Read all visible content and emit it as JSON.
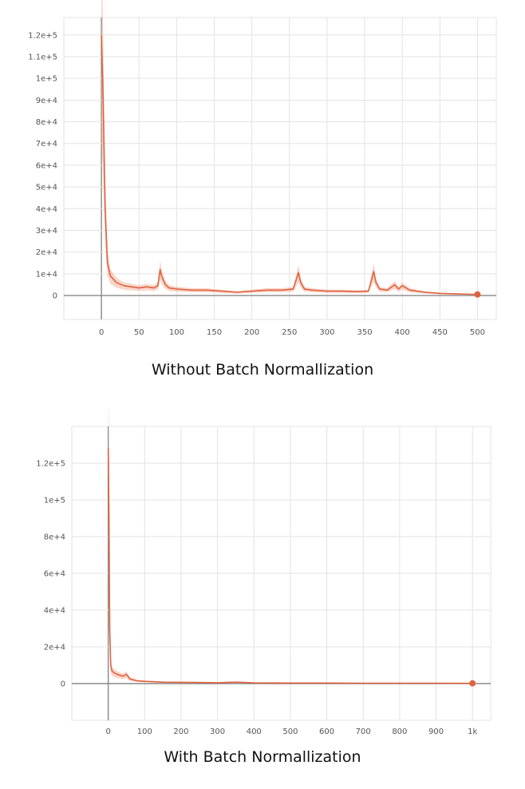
{
  "captions": {
    "top": "Without Batch Normallization",
    "bottom": "With Batch Normallization"
  },
  "colors": {
    "line": "#e0633f",
    "band": "#f2a189",
    "grid": "#e3e3e3",
    "axis": "#888888"
  },
  "chart_data": [
    {
      "type": "line",
      "title": "",
      "xlabel": "",
      "ylabel": "",
      "grid": true,
      "xlim": [
        -50,
        525
      ],
      "ylim": [
        -11000,
        128000
      ],
      "x_ticks": [
        0,
        50,
        100,
        150,
        200,
        250,
        300,
        350,
        400,
        450,
        500
      ],
      "x_tick_labels": [
        "0",
        "50",
        "100",
        "150",
        "200",
        "250",
        "300",
        "350",
        "400",
        "450",
        "500"
      ],
      "y_ticks": [
        0,
        10000,
        20000,
        30000,
        40000,
        50000,
        60000,
        70000,
        80000,
        90000,
        100000,
        110000,
        120000
      ],
      "y_tick_labels": [
        "0",
        "1e+4",
        "2e+4",
        "3e+4",
        "4e+4",
        "5e+4",
        "6e+4",
        "7e+4",
        "8e+4",
        "9e+4",
        "1e+5",
        "1.1e+5",
        "1.2e+5"
      ],
      "series": [
        {
          "x": [
            0,
            2,
            5,
            8,
            12,
            20,
            30,
            40,
            50,
            60,
            70,
            75,
            78,
            80,
            85,
            90,
            100,
            120,
            140,
            160,
            180,
            200,
            220,
            240,
            255,
            262,
            265,
            270,
            280,
            300,
            320,
            340,
            355,
            362,
            365,
            370,
            380,
            390,
            395,
            400,
            410,
            430,
            450,
            470,
            490,
            500
          ],
          "y": [
            120000,
            95000,
            40000,
            15000,
            9000,
            6000,
            4500,
            4000,
            3500,
            4000,
            3500,
            4500,
            12000,
            9000,
            5000,
            3500,
            3000,
            2500,
            2500,
            2000,
            1500,
            2000,
            2500,
            2500,
            3000,
            10500,
            6000,
            3000,
            2500,
            2000,
            2000,
            1800,
            2000,
            11000,
            6000,
            3000,
            2500,
            5000,
            3000,
            4500,
            2500,
            1500,
            1000,
            800,
            600,
            500
          ]
        }
      ]
    },
    {
      "type": "line",
      "title": "",
      "xlabel": "",
      "ylabel": "",
      "grid": true,
      "xlim": [
        -100,
        1050
      ],
      "ylim": [
        -20000,
        140000
      ],
      "x_ticks": [
        0,
        100,
        200,
        300,
        400,
        500,
        600,
        700,
        800,
        900,
        1000
      ],
      "x_tick_labels": [
        "0",
        "100",
        "200",
        "300",
        "400",
        "500",
        "600",
        "700",
        "800",
        "900",
        "1k"
      ],
      "y_ticks": [
        0,
        20000,
        40000,
        60000,
        80000,
        100000,
        120000
      ],
      "y_tick_labels": [
        "0",
        "2e+4",
        "4e+4",
        "6e+4",
        "8e+4",
        "1e+5",
        "1.2e+5"
      ],
      "series": [
        {
          "x": [
            0,
            2,
            4,
            7,
            10,
            15,
            25,
            40,
            50,
            60,
            80,
            100,
            150,
            200,
            300,
            350,
            400,
            500,
            600,
            700,
            800,
            900,
            1000
          ],
          "y": [
            128000,
            90000,
            30000,
            10000,
            7000,
            6000,
            5000,
            4000,
            5000,
            2500,
            1500,
            1200,
            800,
            700,
            500,
            800,
            400,
            300,
            300,
            200,
            200,
            200,
            150
          ]
        }
      ]
    }
  ]
}
